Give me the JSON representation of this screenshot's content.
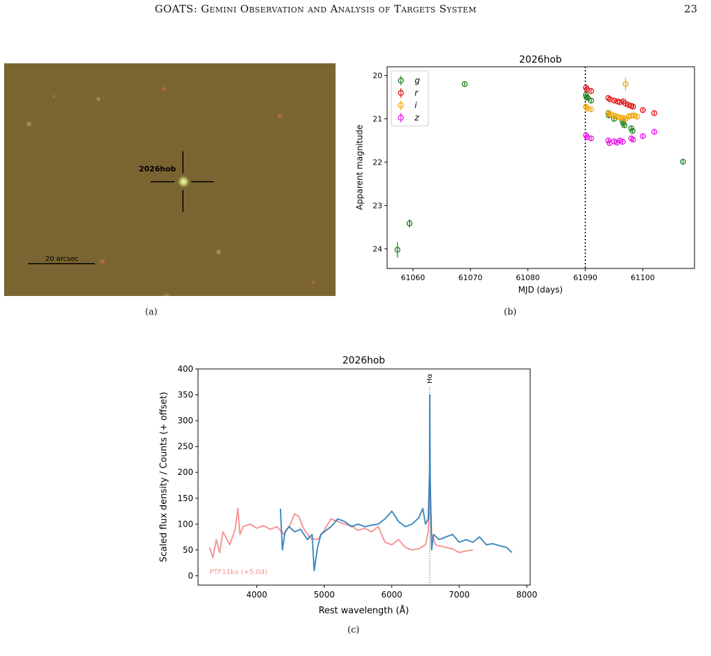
{
  "page": {
    "header_title": "GOATS: Gemini Observation and Analysis of Targets System",
    "page_number": "23"
  },
  "figure": {
    "panel_a": {
      "caption": "(a)",
      "target_label": "2026hob",
      "scalebar_label": "20 arcsec",
      "colors": {
        "background": "#7a6532",
        "crosshair": "#000000"
      }
    },
    "panel_b": {
      "caption": "(b)",
      "chart_data": {
        "type": "scatter",
        "title": "2026hob",
        "xlabel": "MJD (days)",
        "ylabel": "Apparent magnitude",
        "xlim": [
          61055.5,
          61109
        ],
        "ylim": [
          24.45,
          19.8
        ],
        "y_inverted": true,
        "xticks": [
          61060,
          61070,
          61080,
          61090,
          61100
        ],
        "yticks": [
          20,
          21,
          22,
          23,
          24
        ],
        "vline_x": 61090,
        "legend_position": "top-left",
        "series": [
          {
            "name": "g",
            "color": "#1a7f1a",
            "x": [
              61057.3,
              61059.4,
              61069.0,
              61090.1,
              61090.2,
              61090.4,
              61091.0,
              61094.0,
              61094.1,
              61095.0,
              61096.5,
              61096.6,
              61096.8,
              61098.0,
              61098.2,
              61107.0
            ],
            "y": [
              24.02,
              23.41,
              20.2,
              20.45,
              20.5,
              20.52,
              20.58,
              20.87,
              20.92,
              21.0,
              21.05,
              21.1,
              21.15,
              21.22,
              21.28,
              21.99
            ],
            "yerr": [
              0.18,
              0.1,
              0.04,
              0.04,
              0.04,
              0.04,
              0.05,
              0.05,
              0.05,
              0.05,
              0.05,
              0.05,
              0.05,
              0.06,
              0.06,
              0.05
            ]
          },
          {
            "name": "r",
            "color": "#dd1111",
            "x": [
              61090.1,
              61090.3,
              61091.0,
              61094.0,
              61094.3,
              61095.0,
              61095.6,
              61096.0,
              61096.6,
              61097.0,
              61097.5,
              61098.0,
              61098.3,
              61100.0,
              61102.0
            ],
            "y": [
              20.28,
              20.32,
              20.36,
              20.52,
              20.55,
              20.58,
              20.6,
              20.62,
              20.6,
              20.65,
              20.68,
              20.7,
              20.72,
              20.8,
              20.87
            ],
            "yerr": [
              0.04,
              0.04,
              0.04,
              0.04,
              0.04,
              0.04,
              0.04,
              0.04,
              0.04,
              0.04,
              0.04,
              0.04,
              0.04,
              0.04,
              0.04
            ]
          },
          {
            "name": "i",
            "color": "#f5a500",
            "x": [
              61090.1,
              61090.3,
              61091.0,
              61094.0,
              61094.5,
              61095.0,
              61095.5,
              61096.0,
              61096.5,
              61097.0,
              61097.0,
              61097.5,
              61098.0,
              61098.5,
              61099.0
            ],
            "y": [
              20.72,
              20.76,
              20.78,
              20.88,
              20.9,
              20.93,
              20.95,
              20.97,
              20.98,
              20.2,
              21.0,
              20.95,
              20.93,
              20.92,
              20.95
            ],
            "yerr": [
              0.05,
              0.05,
              0.05,
              0.05,
              0.05,
              0.05,
              0.05,
              0.05,
              0.05,
              0.15,
              0.05,
              0.05,
              0.05,
              0.05,
              0.05
            ]
          },
          {
            "name": "z",
            "color": "#ee11ee",
            "x": [
              61090.1,
              61090.3,
              61091.0,
              61094.0,
              61094.2,
              61095.0,
              61095.5,
              61096.0,
              61096.5,
              61098.0,
              61098.3,
              61100.0,
              61102.0
            ],
            "y": [
              21.38,
              21.42,
              21.45,
              21.5,
              21.56,
              21.52,
              21.55,
              21.5,
              21.53,
              21.45,
              21.48,
              21.4,
              21.3
            ],
            "yerr": [
              0.05,
              0.05,
              0.05,
              0.06,
              0.06,
              0.06,
              0.06,
              0.06,
              0.06,
              0.06,
              0.06,
              0.05,
              0.05
            ]
          }
        ]
      }
    },
    "panel_c": {
      "caption": "(c)",
      "chart_data": {
        "type": "line",
        "title": "2026hob",
        "xlabel": "Rest wavelength (Å)",
        "ylabel": "Scaled flux density / Counts (+ offset)",
        "xlim": [
          3130,
          8050
        ],
        "ylim": [
          -18,
          400
        ],
        "xticks": [
          4000,
          5000,
          6000,
          7000,
          8000
        ],
        "yticks": [
          0,
          50,
          100,
          150,
          200,
          250,
          300,
          350,
          400
        ],
        "annotation_line": {
          "x": 6563,
          "label": "Hα"
        },
        "template_label": "PTF11kx (+5.0d)",
        "series": [
          {
            "name": "PTF11kx (+5.0d)",
            "color": "#f4908c",
            "x": [
              3300,
              3350,
              3400,
              3450,
              3500,
              3600,
              3680,
              3720,
              3750,
              3800,
              3900,
              4000,
              4100,
              4200,
              4300,
              4400,
              4500,
              4560,
              4620,
              4700,
              4800,
              4900,
              5000,
              5100,
              5200,
              5300,
              5400,
              5500,
              5600,
              5700,
              5800,
              5900,
              6000,
              6100,
              6200,
              6300,
              6400,
              6500,
              6540,
              6563,
              6590,
              6650,
              6700,
              6800,
              6900,
              7000,
              7100,
              7200
            ],
            "y": [
              55,
              35,
              70,
              45,
              85,
              60,
              90,
              130,
              80,
              95,
              100,
              92,
              97,
              90,
              95,
              80,
              100,
              120,
              115,
              90,
              72,
              70,
              88,
              110,
              105,
              100,
              97,
              88,
              92,
              85,
              95,
              65,
              60,
              70,
              55,
              50,
              52,
              60,
              85,
              185,
              80,
              60,
              58,
              55,
              52,
              45,
              48,
              50
            ]
          },
          {
            "name": "2026hob",
            "color": "#1f77b4",
            "x": [
              4350,
              4380,
              4420,
              4480,
              4560,
              4650,
              4750,
              4820,
              4850,
              4900,
              4950,
              5000,
              5100,
              5200,
              5300,
              5400,
              5500,
              5600,
              5700,
              5800,
              5900,
              6000,
              6100,
              6200,
              6300,
              6400,
              6460,
              6500,
              6540,
              6560,
              6563,
              6570,
              6590,
              6620,
              6700,
              6800,
              6900,
              7000,
              7100,
              7200,
              7300,
              7400,
              7500,
              7600,
              7700,
              7780
            ],
            "y": [
              130,
              50,
              85,
              95,
              85,
              90,
              70,
              80,
              10,
              55,
              80,
              85,
              95,
              110,
              105,
              95,
              100,
              95,
              98,
              100,
              110,
              125,
              105,
              95,
              100,
              112,
              130,
              100,
              110,
              200,
              350,
              180,
              50,
              80,
              70,
              75,
              80,
              65,
              70,
              65,
              75,
              60,
              62,
              58,
              55,
              45
            ]
          }
        ]
      }
    }
  }
}
